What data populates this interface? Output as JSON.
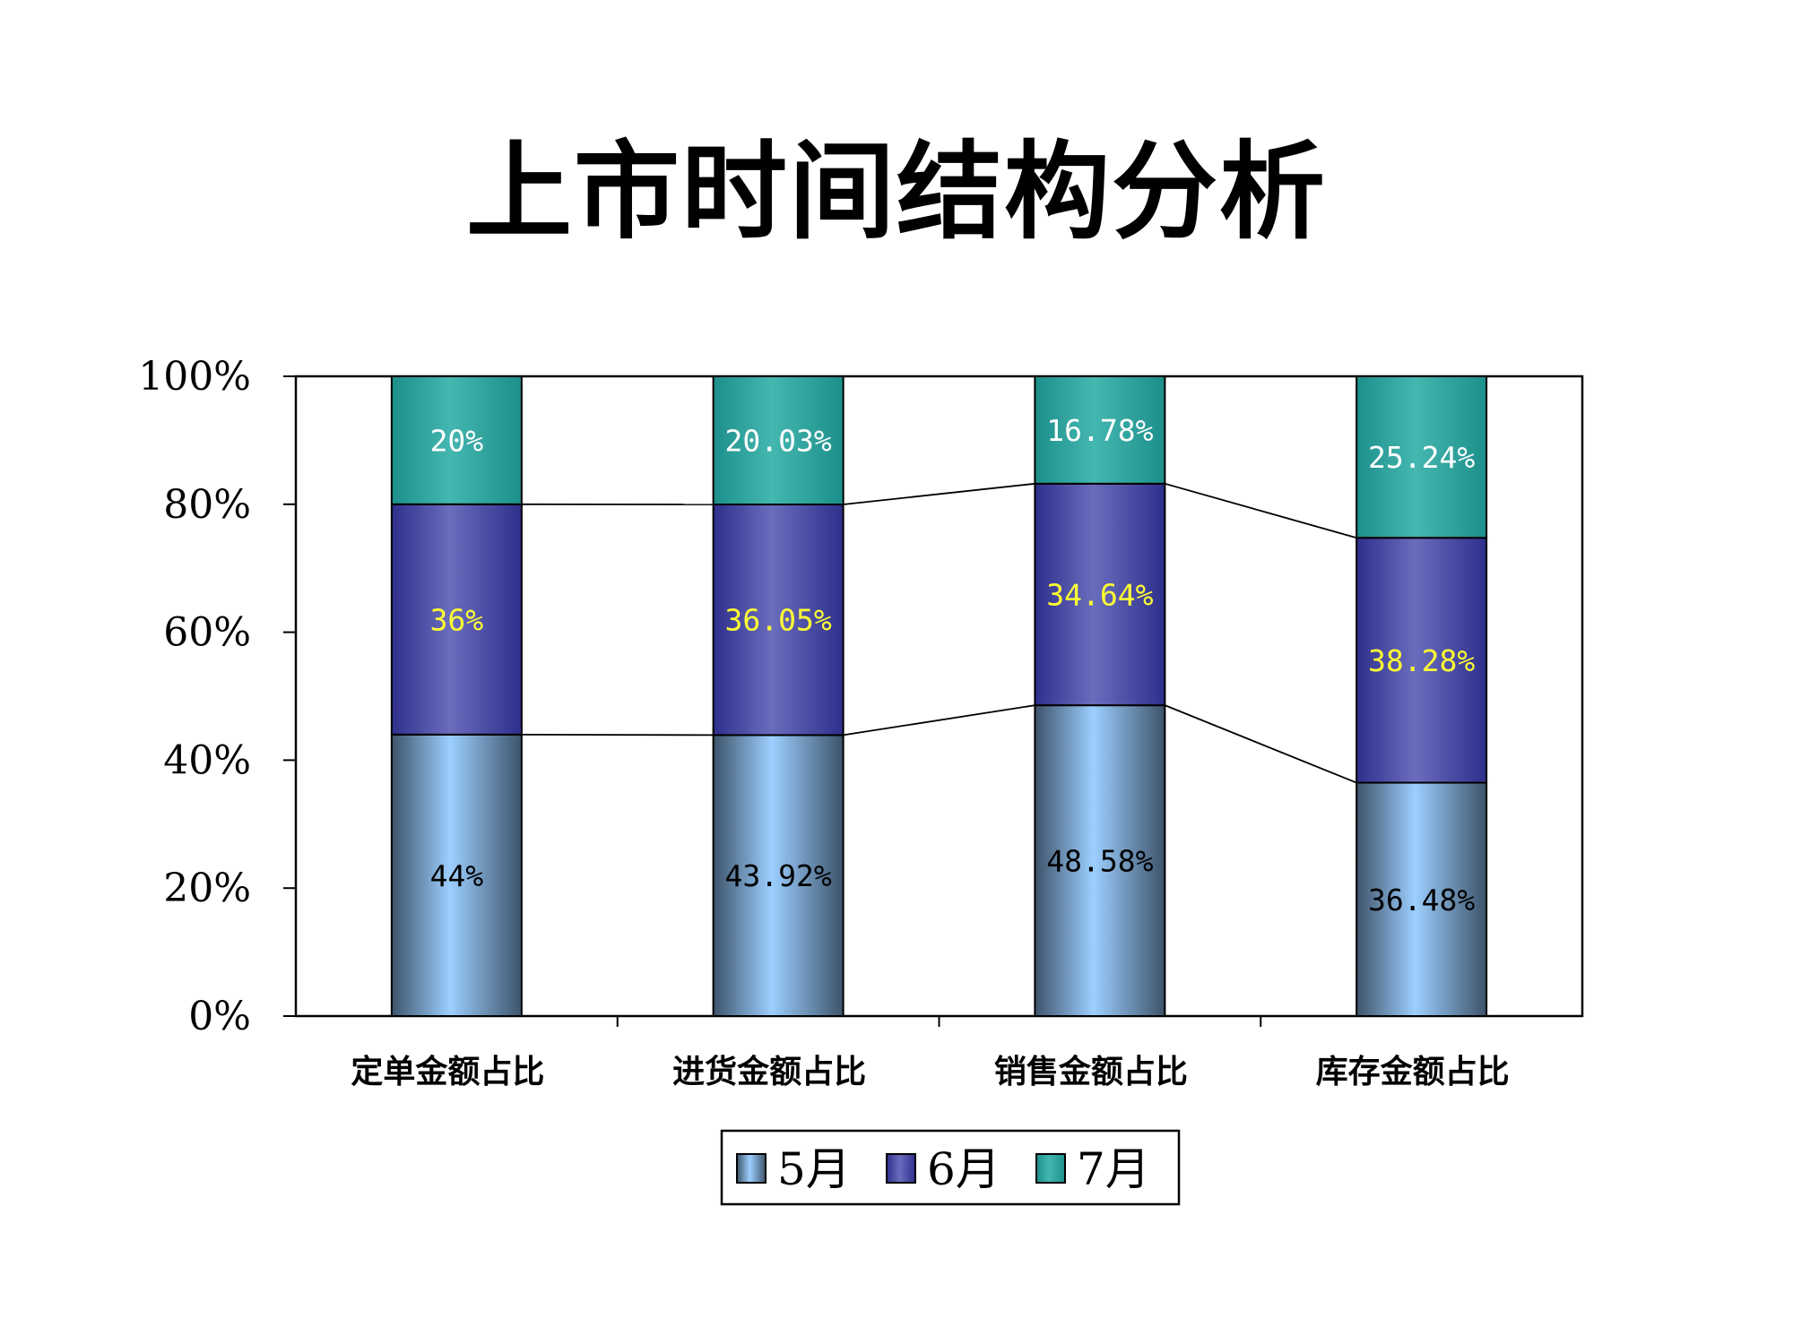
{
  "title": "上市时间结构分析",
  "chart_data": {
    "type": "bar",
    "stacked": true,
    "percent": true,
    "title": "上市时间结构分析",
    "categories": [
      "定单金额占比",
      "进货金额占比",
      "销售金额占比",
      "库存金额占比"
    ],
    "series": [
      {
        "name": "5月",
        "values": [
          44,
          43.92,
          48.58,
          36.48
        ],
        "labels": [
          "44%",
          "43.92%",
          "48.58%",
          "36.48%"
        ],
        "color": "#9ccfff",
        "label_color": "#000000"
      },
      {
        "name": "6月",
        "values": [
          36,
          36.05,
          34.64,
          38.28
        ],
        "labels": [
          "36%",
          "36.05%",
          "34.64%",
          "38.28%"
        ],
        "color": "#5b5fb5",
        "label_color": "#ffff33"
      },
      {
        "name": "7月",
        "values": [
          20,
          20.03,
          16.78,
          25.24
        ],
        "labels": [
          "20%",
          "20.03%",
          "16.78%",
          "25.24%"
        ],
        "color": "#3aaea8",
        "label_color": "#ffffff"
      }
    ],
    "y_ticks": [
      "0%",
      "20%",
      "40%",
      "60%",
      "80%",
      "100%"
    ],
    "ylim": [
      0,
      100
    ],
    "xlabel": "",
    "ylabel": "",
    "grid": false,
    "series_lines": true,
    "legend": {
      "position": "bottom",
      "boxed": true
    }
  }
}
